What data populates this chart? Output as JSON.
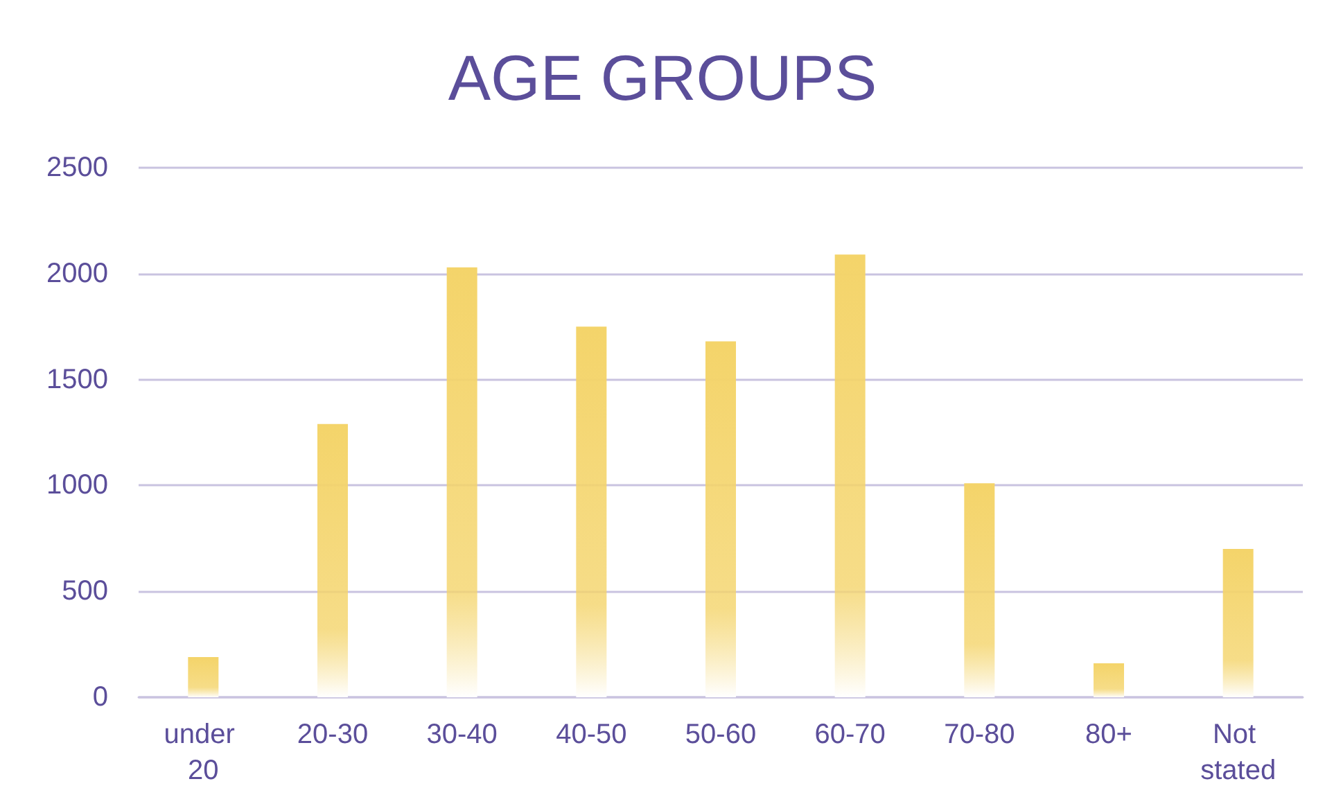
{
  "chart_data": {
    "type": "bar",
    "title": "AGE GROUPS",
    "categories": [
      "under 20",
      "20-30",
      "30-40",
      "40-50",
      "50-60",
      "60-70",
      "70-80",
      "80+",
      "Not stated"
    ],
    "values": [
      190,
      1290,
      2030,
      1750,
      1680,
      2090,
      1010,
      160,
      700
    ],
    "color": "#f4d46a",
    "ylim": [
      0,
      2500
    ],
    "yticks": [
      0,
      500,
      1000,
      1500,
      2000,
      2500
    ],
    "grid": "y"
  }
}
